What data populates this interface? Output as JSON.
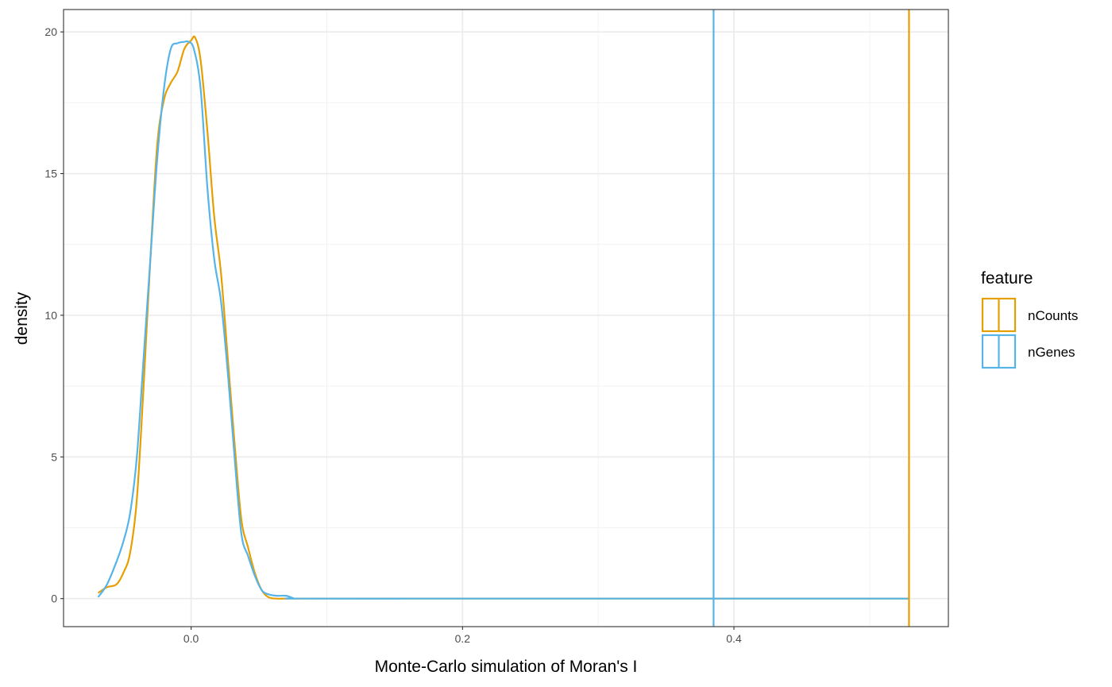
{
  "chart_data": {
    "type": "line",
    "title": "",
    "xlabel": "Monte-Carlo simulation of Moran's I",
    "ylabel": "density",
    "xlim": [
      -0.094,
      0.558
    ],
    "ylim": [
      -0.99,
      20.79
    ],
    "x_ticks": [
      0.0,
      0.2,
      0.4
    ],
    "x_tick_labels": [
      "0.0",
      "0.2",
      "0.4"
    ],
    "y_ticks": [
      0,
      5,
      10,
      15,
      20
    ],
    "y_tick_labels": [
      "0",
      "5",
      "10",
      "15",
      "20"
    ],
    "grid": true,
    "legend": {
      "title": "feature",
      "position": "right"
    },
    "series": [
      {
        "name": "nCounts",
        "color": "#E69F00",
        "observed": 0.529,
        "x": [
          -0.0685,
          -0.062,
          -0.055,
          -0.05,
          -0.045,
          -0.04,
          -0.035,
          -0.03,
          -0.025,
          -0.02,
          -0.015,
          -0.01,
          -0.005,
          0.0,
          0.003,
          0.007,
          0.012,
          0.017,
          0.022,
          0.027,
          0.032,
          0.037,
          0.042,
          0.047,
          0.052,
          0.057,
          0.063,
          0.07,
          0.08,
          0.2,
          0.3,
          0.4,
          0.529
        ],
        "y": [
          0.2,
          0.4,
          0.5,
          0.9,
          1.6,
          3.5,
          7.5,
          12.0,
          16.0,
          17.6,
          18.2,
          18.6,
          19.4,
          19.7,
          19.8,
          19.0,
          16.5,
          13.5,
          11.5,
          8.5,
          5.5,
          2.8,
          1.8,
          0.9,
          0.3,
          0.05,
          0.0,
          0.0,
          0.0,
          0.0,
          0.0,
          0.0,
          0.0
        ]
      },
      {
        "name": "nGenes",
        "color": "#56B4E9",
        "observed": 0.385,
        "x": [
          -0.0685,
          -0.062,
          -0.055,
          -0.05,
          -0.045,
          -0.04,
          -0.035,
          -0.03,
          -0.025,
          -0.02,
          -0.015,
          -0.01,
          -0.005,
          -0.002,
          0.002,
          0.007,
          0.012,
          0.017,
          0.022,
          0.027,
          0.032,
          0.037,
          0.042,
          0.047,
          0.052,
          0.057,
          0.063,
          0.07,
          0.075,
          0.08,
          0.2,
          0.3,
          0.385,
          0.529
        ],
        "y": [
          0.05,
          0.5,
          1.3,
          2.0,
          3.0,
          5.0,
          8.5,
          12.0,
          15.5,
          18.0,
          19.4,
          19.6,
          19.65,
          19.65,
          19.4,
          18.0,
          14.5,
          12.0,
          10.5,
          8.0,
          5.0,
          2.3,
          1.5,
          0.8,
          0.3,
          0.15,
          0.1,
          0.1,
          0.02,
          0.0,
          0.0,
          0.0,
          0.0,
          0.0
        ]
      }
    ]
  }
}
